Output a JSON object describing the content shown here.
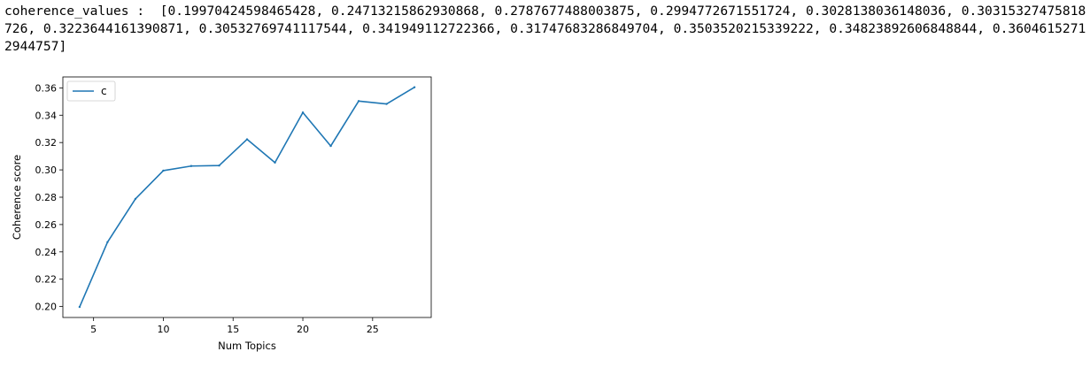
{
  "output": {
    "text": "coherence_values :  [0.19970424598465428, 0.24713215862930868, 0.2787677488003875, 0.2994772671551724, 0.3028138036148036, 0.30315327475818726, 0.3223644161390871, 0.30532769741117544, 0.341949112722366, 0.31747683286849704, 0.3503520215339222, 0.34823892606848844, 0.36046152712944757]"
  },
  "chart_data": {
    "type": "line",
    "title": "",
    "xlabel": "Num Topics",
    "ylabel": "Coherence score",
    "xlim": [
      2.8,
      29.2
    ],
    "ylim": [
      0.192,
      0.368
    ],
    "xticks": [
      5,
      10,
      15,
      20,
      25
    ],
    "yticks": [
      0.2,
      0.22,
      0.24,
      0.26,
      0.28,
      0.3,
      0.32,
      0.34,
      0.36
    ],
    "grid": false,
    "legend_position": "top-left",
    "series": [
      {
        "name": "c",
        "color": "#1f77b4",
        "x": [
          4,
          6,
          8,
          10,
          12,
          14,
          16,
          18,
          20,
          22,
          24,
          26,
          28
        ],
        "values": [
          0.19970424598465428,
          0.24713215862930868,
          0.2787677488003875,
          0.2994772671551724,
          0.3028138036148036,
          0.30315327475818726,
          0.3223644161390871,
          0.30532769741117544,
          0.341949112722366,
          0.31747683286849704,
          0.3503520215339222,
          0.34823892606848844,
          0.36046152712944757
        ]
      }
    ]
  }
}
